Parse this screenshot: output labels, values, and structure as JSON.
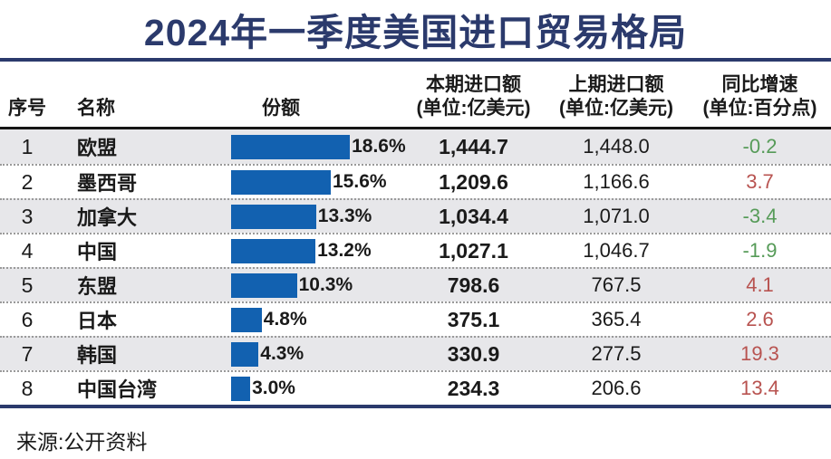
{
  "title": "2024年一季度美国进口贸易格局",
  "source": "来源:公开资料",
  "colors": {
    "title": "#2b3a6c",
    "bar": "#1261b0",
    "row_alt": "#e7e7ea",
    "positive": "#b85350",
    "negative": "#569b58"
  },
  "table": {
    "headers": {
      "index": "序号",
      "name": "名称",
      "share": "份额",
      "current": "本期进口额",
      "current_unit": "(单位:亿美元)",
      "previous": "上期进口额",
      "previous_unit": "(单位:亿美元)",
      "growth": "同比增速",
      "growth_unit": "(单位:百分点)"
    },
    "rows": [
      {
        "index": "1",
        "name": "欧盟",
        "share_pct": 18.6,
        "share_label": "18.6%",
        "current": "1,444.7",
        "previous": "1,448.0",
        "growth": "-0.2"
      },
      {
        "index": "2",
        "name": "墨西哥",
        "share_pct": 15.6,
        "share_label": "15.6%",
        "current": "1,209.6",
        "previous": "1,166.6",
        "growth": "3.7"
      },
      {
        "index": "3",
        "name": "加拿大",
        "share_pct": 13.3,
        "share_label": "13.3%",
        "current": "1,034.4",
        "previous": "1,071.0",
        "growth": "-3.4"
      },
      {
        "index": "4",
        "name": "中国",
        "share_pct": 13.2,
        "share_label": "13.2%",
        "current": "1,027.1",
        "previous": "1,046.7",
        "growth": "-1.9"
      },
      {
        "index": "5",
        "name": "东盟",
        "share_pct": 10.3,
        "share_label": "10.3%",
        "current": "798.6",
        "previous": "767.5",
        "growth": "4.1"
      },
      {
        "index": "6",
        "name": "日本",
        "share_pct": 4.8,
        "share_label": "4.8%",
        "current": "375.1",
        "previous": "365.4",
        "growth": "2.6"
      },
      {
        "index": "7",
        "name": "韩国",
        "share_pct": 4.3,
        "share_label": "4.3%",
        "current": "330.9",
        "previous": "277.5",
        "growth": "19.3"
      },
      {
        "index": "8",
        "name": "中国台湾",
        "share_pct": 3.0,
        "share_label": "3.0%",
        "current": "234.3",
        "previous": "206.6",
        "growth": "13.4"
      }
    ]
  },
  "chart_data": {
    "type": "table",
    "title": "2024年一季度美国进口贸易格局",
    "columns": [
      "序号",
      "名称",
      "份额",
      "本期进口额(单位:亿美元)",
      "上期进口额(单位:亿美元)",
      "同比增速(单位:百分点)"
    ],
    "categories": [
      "欧盟",
      "墨西哥",
      "加拿大",
      "中国",
      "东盟",
      "日本",
      "韩国",
      "中国台湾"
    ],
    "series": [
      {
        "name": "份额(%)",
        "values": [
          18.6,
          15.6,
          13.3,
          13.2,
          10.3,
          4.8,
          4.3,
          3.0
        ]
      },
      {
        "name": "本期进口额(亿美元)",
        "values": [
          1444.7,
          1209.6,
          1034.4,
          1027.1,
          798.6,
          375.1,
          330.9,
          234.3
        ]
      },
      {
        "name": "上期进口额(亿美元)",
        "values": [
          1448.0,
          1166.6,
          1071.0,
          1046.7,
          767.5,
          365.4,
          277.5,
          206.6
        ]
      },
      {
        "name": "同比增速(百分点)",
        "values": [
          -0.2,
          3.7,
          -3.4,
          -1.9,
          4.1,
          2.6,
          19.3,
          13.4
        ]
      }
    ],
    "notes": "份额 shown as horizontal blue bars; 同比增速 negative values green, positive values red",
    "source": "来源:公开资料"
  }
}
